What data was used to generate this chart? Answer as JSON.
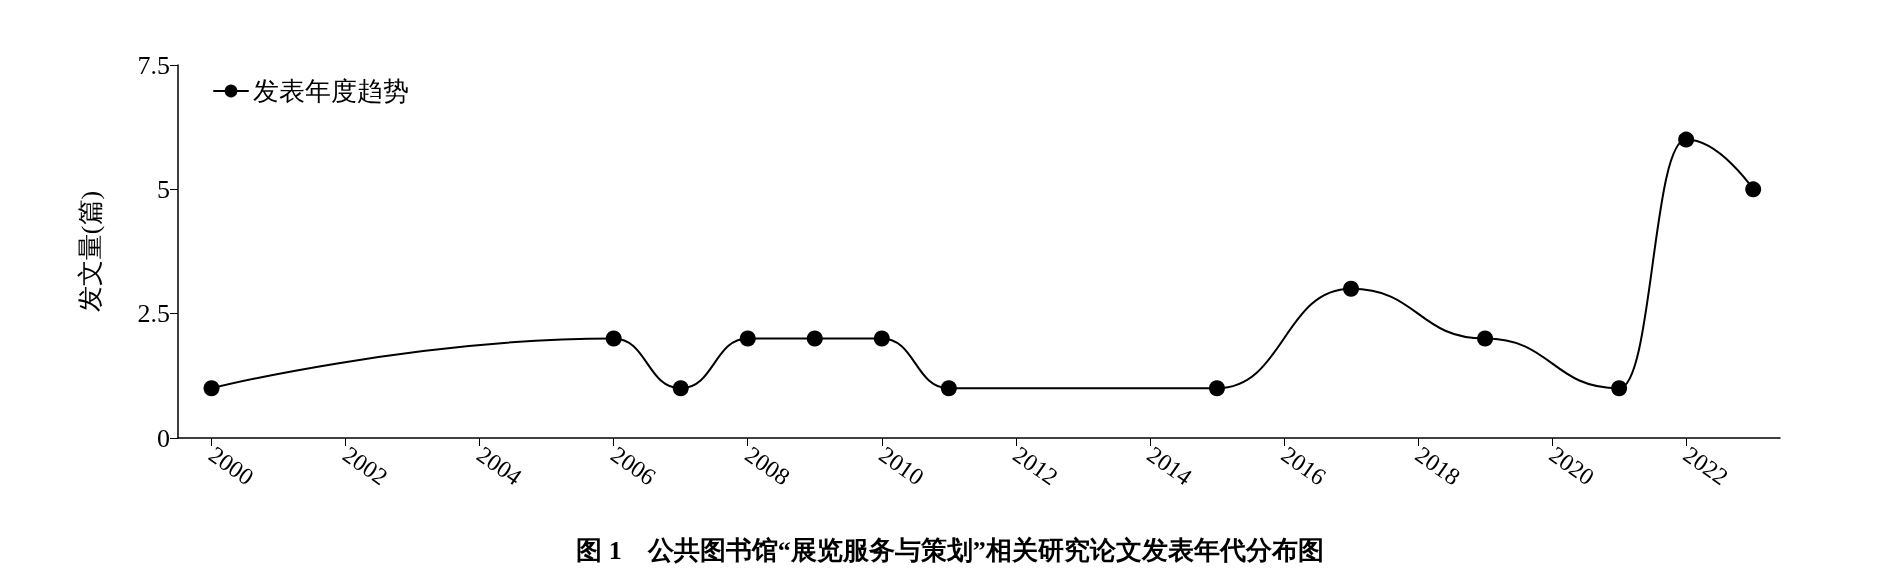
{
  "chart_data": {
    "type": "line",
    "title": "图 1　公共图书馆“展览服务与策划”相关研究论文发表年代分布图",
    "ylabel": "发文量(篇)",
    "x": [
      2000,
      2006,
      2007,
      2008,
      2009,
      2010,
      2011,
      2015,
      2017,
      2019,
      2021,
      2022,
      2023
    ],
    "series": [
      {
        "name": "发表年度趋势",
        "color": "#000000",
        "values": [
          1,
          2,
          1,
          2,
          2,
          2,
          1,
          1,
          3,
          2,
          1,
          6,
          5
        ]
      }
    ],
    "xlim": [
      1999.5,
      2023.4
    ],
    "xticks": [
      2000,
      2002,
      2004,
      2006,
      2008,
      2010,
      2012,
      2014,
      2016,
      2018,
      2020,
      2022
    ],
    "ylim": [
      0,
      7.5
    ],
    "yticks": [
      0,
      2.5,
      5,
      7.5
    ],
    "grid": false,
    "legend": "top left",
    "marker": "circle",
    "line_style": "solid"
  }
}
